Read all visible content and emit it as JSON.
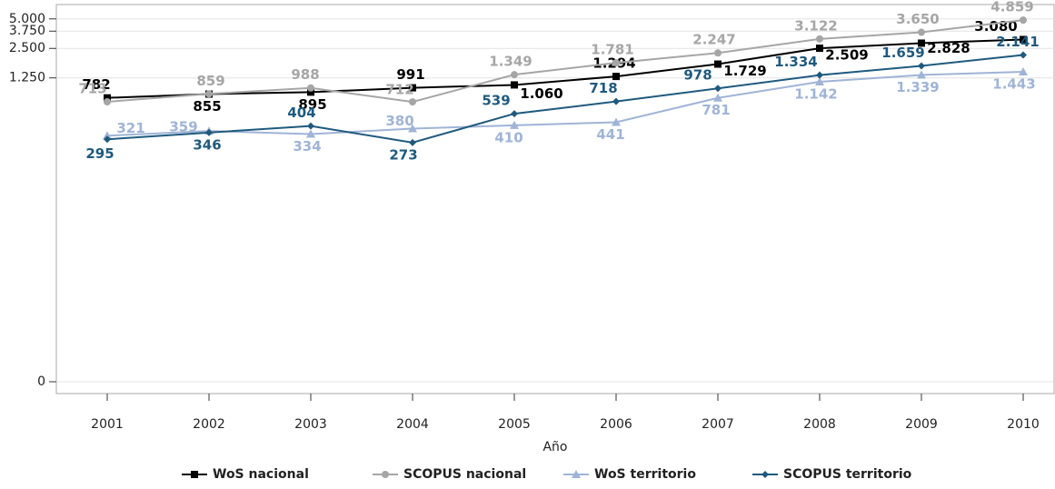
{
  "chart_data": {
    "type": "line",
    "x_label": "Año",
    "categories": [
      "2001",
      "2002",
      "2003",
      "2004",
      "2005",
      "2006",
      "2007",
      "2008",
      "2009",
      "2010"
    ],
    "yscale": "log1p",
    "ylim": [
      0,
      7000
    ],
    "yticks": [
      0,
      {
        "value": 1250,
        "label": "1.250"
      },
      {
        "value": 2500,
        "label": "2.500"
      },
      {
        "value": 3750,
        "label": "3.750"
      },
      {
        "value": 5000,
        "label": "5.000"
      }
    ],
    "grid": true,
    "legend": "bottom",
    "series": [
      {
        "name": "WoS nacional",
        "color": "#000000",
        "marker": "square",
        "values": [
          782,
          855,
          895,
          991,
          1060,
          1294,
          1729,
          2509,
          2828,
          3080
        ],
        "value_labels": [
          "782",
          "855",
          "895",
          "991",
          "1.060",
          "1.294",
          "1.729",
          "2.509",
          "2.828",
          "3.080"
        ]
      },
      {
        "name": "SCOPUS nacional",
        "color": "#a6a6a6",
        "marker": "circle",
        "values": [
          713,
          859,
          988,
          712,
          1349,
          1781,
          2247,
          3122,
          3650,
          4859
        ],
        "value_labels": [
          "713",
          "859",
          "988",
          "712",
          "1.349",
          "1.781",
          "2.247",
          "3.122",
          "3.650",
          "4.859"
        ]
      },
      {
        "name": "WoS territorio",
        "color": "#9fb4d6",
        "marker": "triangle",
        "values": [
          321,
          359,
          334,
          380,
          410,
          441,
          781,
          1142,
          1339,
          1443
        ],
        "value_labels": [
          "321",
          "359",
          "334",
          "380",
          "410",
          "441",
          "781",
          "1.142",
          "1.339",
          "1.443"
        ]
      },
      {
        "name": "SCOPUS territorio",
        "color": "#1f5a7e",
        "marker": "diamond",
        "values": [
          295,
          346,
          404,
          273,
          539,
          718,
          978,
          1334,
          1659,
          2141
        ],
        "value_labels": [
          "295",
          "346",
          "404",
          "273",
          "539",
          "718",
          "978",
          "1.334",
          "1.659",
          "2.141"
        ]
      }
    ]
  }
}
